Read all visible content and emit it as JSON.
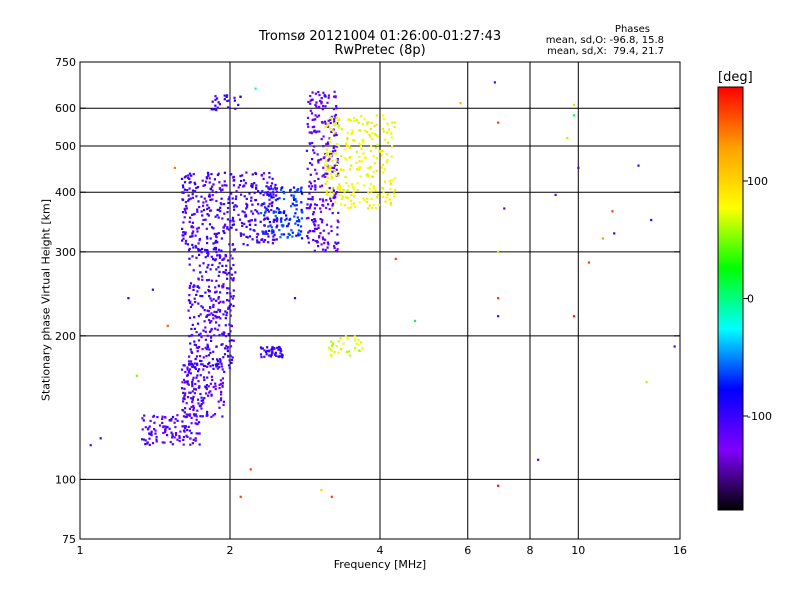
{
  "chart_data": {
    "type": "scatter",
    "title": "Tromsø 20121004 01:26:00-01:27:43",
    "subtitle": "RwPretec (8p)",
    "xlabel": "Frequency [MHz]",
    "ylabel": "Stationary phase Virtual Height [km]",
    "x_scale": "log",
    "y_scale": "log",
    "xlim": [
      1,
      16
    ],
    "ylim": [
      75,
      750
    ],
    "x_ticks": [
      1,
      2,
      4,
      8,
      16
    ],
    "x_tick_labels": [
      "1",
      "2",
      "4",
      "8",
      "16"
    ],
    "x_extra_labels": [
      {
        "x": 6,
        "label": "6"
      },
      {
        "x": 10,
        "label": "10"
      }
    ],
    "x_grid": [
      2,
      4,
      6,
      8,
      10
    ],
    "y_ticks": [
      75,
      100,
      200,
      300,
      400,
      500,
      600,
      750
    ],
    "y_tick_labels": [
      "75",
      "100",
      "200",
      "300",
      "400",
      "500",
      "600",
      "750"
    ],
    "y_grid": [
      100,
      200,
      300,
      400,
      500,
      600
    ],
    "grid": true,
    "phases": {
      "title": "Phases",
      "o_line": "mean, sd,O: -96.8, 15.8",
      "x_line": "mean, sd,X:  79.4, 21.7"
    },
    "colorbar": {
      "unit": "[deg]",
      "range": [
        -180,
        180
      ],
      "ticks": [
        100,
        0,
        -100
      ],
      "tick_labels": [
        "100",
        "0",
        "-100"
      ],
      "colors": [
        "#ff0000",
        "#ffa000",
        "#ffff00",
        "#00ff00",
        "#00ffff",
        "#0000ff",
        "#8000ff",
        "#000000"
      ]
    },
    "clusters": [
      {
        "name": "o-low-trace-lower",
        "x": [
          1.33,
          1.75
        ],
        "y": [
          118,
          137
        ],
        "phase": -110,
        "count": 120
      },
      {
        "name": "o-low-trace-upper",
        "x": [
          1.6,
          1.95
        ],
        "y": [
          135,
          175
        ],
        "phase": -110,
        "count": 150
      },
      {
        "name": "o-E-vertical",
        "x": [
          1.65,
          2.05
        ],
        "y": [
          170,
          310
        ],
        "phase": -105,
        "count": 320
      },
      {
        "name": "o-F-band",
        "x": [
          1.6,
          2.5
        ],
        "y": [
          310,
          440
        ],
        "phase": -105,
        "count": 380
      },
      {
        "name": "o-F-transition",
        "x": [
          2.3,
          2.8
        ],
        "y": [
          320,
          410
        ],
        "phase": -70,
        "count": 120
      },
      {
        "name": "o-F-high",
        "x": [
          2.85,
          3.3
        ],
        "y": [
          300,
          650
        ],
        "phase": -115,
        "count": 260
      },
      {
        "name": "o-F-top-left",
        "x": [
          1.8,
          2.1
        ],
        "y": [
          595,
          640
        ],
        "phase": -100,
        "count": 25
      },
      {
        "name": "o-small-patch",
        "x": [
          2.3,
          2.55
        ],
        "y": [
          180,
          190
        ],
        "phase": -100,
        "count": 45
      },
      {
        "name": "x-F-trace",
        "x": [
          3.1,
          4.3
        ],
        "y": [
          370,
          580
        ],
        "phase": 80,
        "count": 260
      },
      {
        "name": "x-E-patch",
        "x": [
          3.15,
          3.7
        ],
        "y": [
          180,
          200
        ],
        "phase": 70,
        "count": 30
      }
    ],
    "sparse_points": [
      {
        "x": 1.05,
        "y": 118,
        "phase": -110
      },
      {
        "x": 1.1,
        "y": 122,
        "phase": -100
      },
      {
        "x": 1.25,
        "y": 240,
        "phase": -100
      },
      {
        "x": 1.3,
        "y": 165,
        "phase": 50
      },
      {
        "x": 1.4,
        "y": 250,
        "phase": -100
      },
      {
        "x": 1.5,
        "y": 210,
        "phase": 150
      },
      {
        "x": 1.55,
        "y": 450,
        "phase": 140
      },
      {
        "x": 2.1,
        "y": 92,
        "phase": 160
      },
      {
        "x": 2.2,
        "y": 105,
        "phase": 160
      },
      {
        "x": 2.25,
        "y": 660,
        "phase": -10
      },
      {
        "x": 2.7,
        "y": 240,
        "phase": -100
      },
      {
        "x": 3.05,
        "y": 95,
        "phase": 100
      },
      {
        "x": 3.2,
        "y": 92,
        "phase": 160
      },
      {
        "x": 4.3,
        "y": 290,
        "phase": 160
      },
      {
        "x": 4.7,
        "y": 215,
        "phase": 10
      },
      {
        "x": 5.8,
        "y": 615,
        "phase": 120
      },
      {
        "x": 6.8,
        "y": 680,
        "phase": -110
      },
      {
        "x": 6.9,
        "y": 560,
        "phase": 160
      },
      {
        "x": 6.9,
        "y": 300,
        "phase": 60
      },
      {
        "x": 6.9,
        "y": 240,
        "phase": 160
      },
      {
        "x": 6.9,
        "y": 220,
        "phase": -110
      },
      {
        "x": 6.9,
        "y": 97,
        "phase": 175
      },
      {
        "x": 7.1,
        "y": 370,
        "phase": -110
      },
      {
        "x": 8.3,
        "y": 110,
        "phase": -110
      },
      {
        "x": 9.0,
        "y": 395,
        "phase": -110
      },
      {
        "x": 9.5,
        "y": 520,
        "phase": 60
      },
      {
        "x": 9.8,
        "y": 610,
        "phase": 100
      },
      {
        "x": 9.8,
        "y": 580,
        "phase": 10
      },
      {
        "x": 9.8,
        "y": 220,
        "phase": 175
      },
      {
        "x": 10.0,
        "y": 450,
        "phase": -140
      },
      {
        "x": 10.5,
        "y": 285,
        "phase": 160
      },
      {
        "x": 11.2,
        "y": 320,
        "phase": 130
      },
      {
        "x": 11.7,
        "y": 365,
        "phase": 160
      },
      {
        "x": 11.8,
        "y": 328,
        "phase": -100
      },
      {
        "x": 13.2,
        "y": 455,
        "phase": -100
      },
      {
        "x": 13.7,
        "y": 160,
        "phase": 60
      },
      {
        "x": 14.0,
        "y": 350,
        "phase": -100
      },
      {
        "x": 15.6,
        "y": 190,
        "phase": -110
      }
    ]
  }
}
